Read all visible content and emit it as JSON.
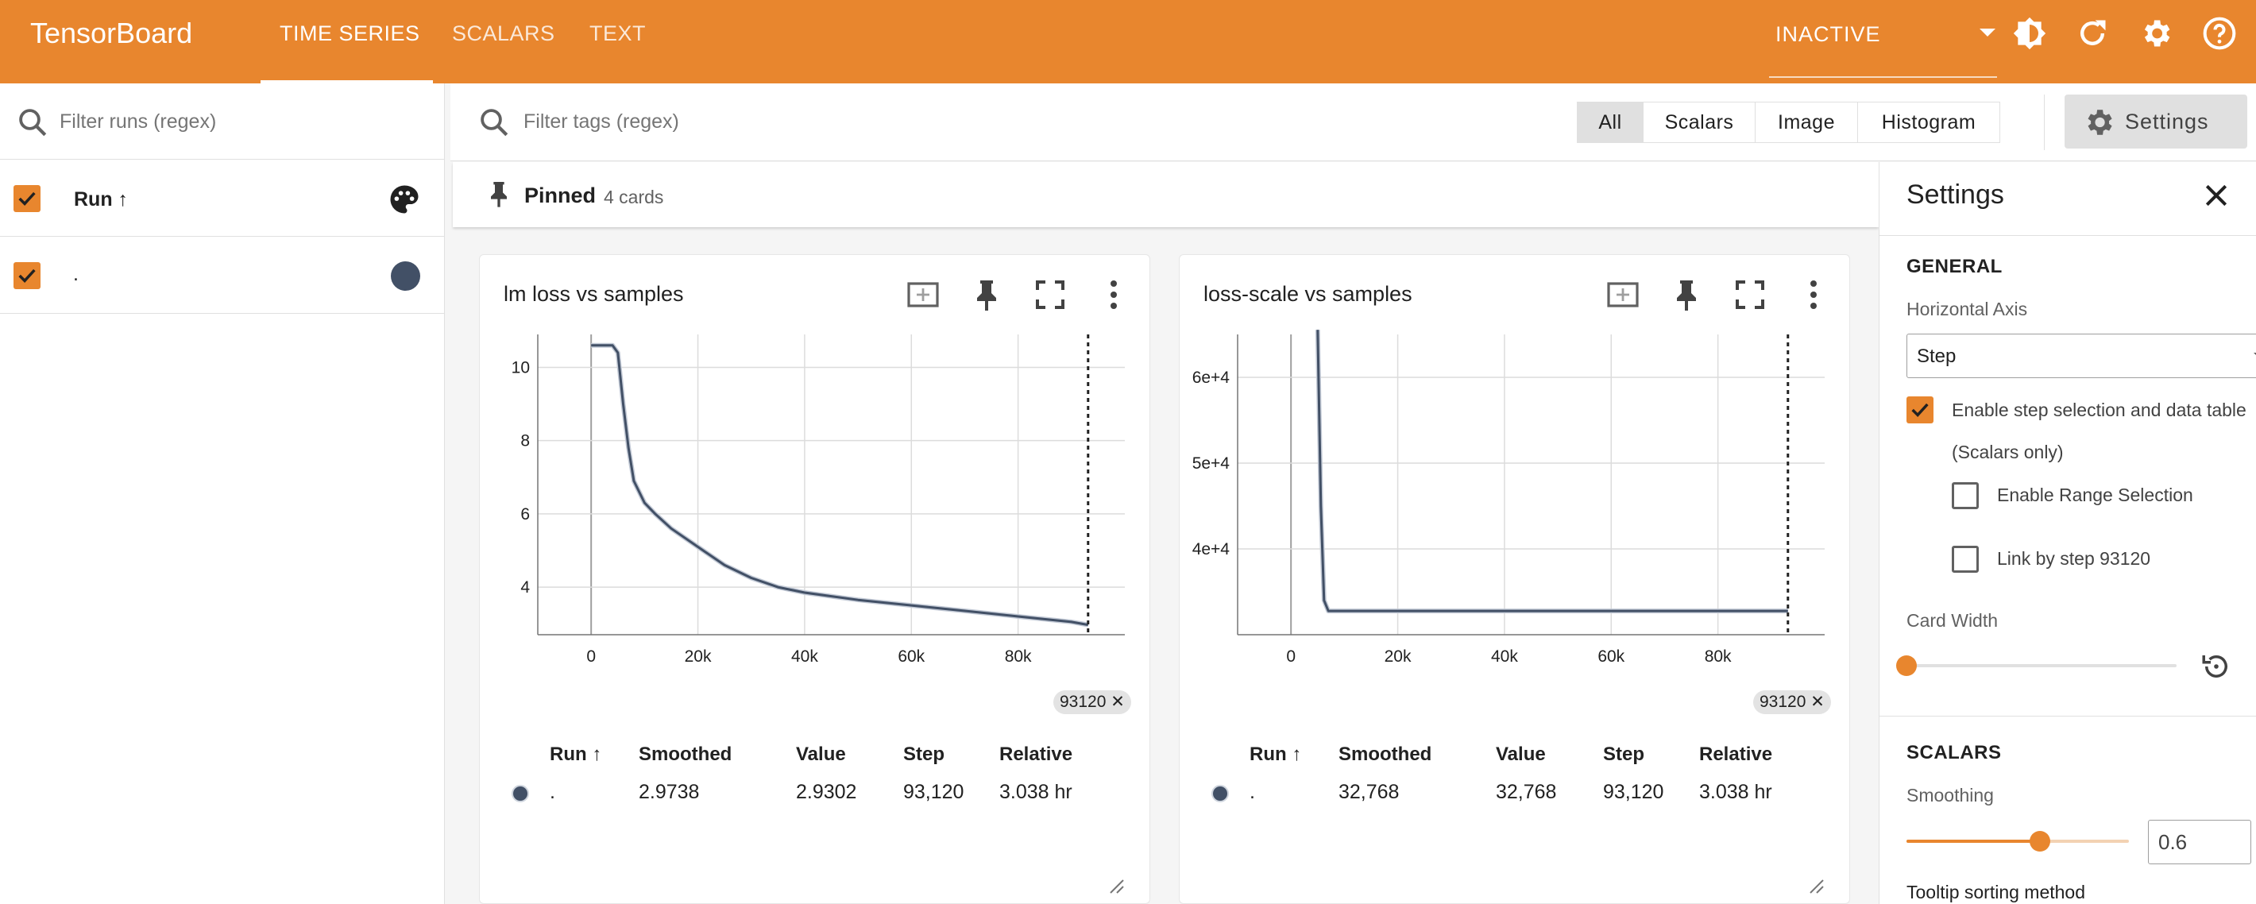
{
  "topbar": {
    "brand": "TensorBoard",
    "tabs": [
      {
        "label": "TIME SERIES",
        "active": true
      },
      {
        "label": "SCALARS",
        "active": false
      },
      {
        "label": "TEXT",
        "active": false
      }
    ],
    "run_status": "INACTIVE",
    "icons": [
      "theme-toggle-icon",
      "refresh-icon",
      "gear-icon",
      "help-icon"
    ],
    "accent_color": "#e8862e"
  },
  "sidebar": {
    "filter_placeholder": "Filter runs (regex)",
    "header_label": "Run ↑",
    "runs": [
      {
        "name": ".",
        "checked": true,
        "color": "#425066"
      }
    ]
  },
  "main": {
    "filter_placeholder": "Filter tags (regex)",
    "type_filters": [
      {
        "label": "All",
        "active": true
      },
      {
        "label": "Scalars",
        "active": false
      },
      {
        "label": "Image",
        "active": false
      },
      {
        "label": "Histogram",
        "active": false
      }
    ],
    "settings_button": "Settings",
    "pinned": {
      "label": "Pinned",
      "count_text": "4 cards"
    }
  },
  "cards": [
    {
      "title": "lm loss vs samples",
      "step_chip": "93120 ✕",
      "table": {
        "headers": [
          "Run ↑",
          "Smoothed",
          "Value",
          "Step",
          "Relative"
        ],
        "row": [
          ".",
          "2.9738",
          "2.9302",
          "93,120",
          "3.038 hr"
        ]
      },
      "chart_data": {
        "type": "line",
        "x_ticks": [
          "0",
          "20k",
          "40k",
          "60k",
          "80k"
        ],
        "y_ticks": [
          "4",
          "6",
          "8",
          "10"
        ],
        "xlim": [
          -10000,
          100000
        ],
        "ylim": [
          2.7,
          10.9
        ],
        "selected_step": 93120,
        "series": [
          {
            "name": ".",
            "x": [
              0,
              4000,
              5000,
              6000,
              7000,
              8000,
              10000,
              12000,
              15000,
              20000,
              25000,
              30000,
              35000,
              40000,
              50000,
              60000,
              70000,
              80000,
              90000,
              93120
            ],
            "y": [
              10.6,
              10.6,
              10.4,
              9.0,
              7.8,
              6.9,
              6.3,
              6.0,
              5.6,
              5.1,
              4.6,
              4.25,
              4.0,
              3.85,
              3.65,
              3.5,
              3.35,
              3.2,
              3.05,
              2.97
            ]
          }
        ]
      }
    },
    {
      "title": "loss-scale vs samples",
      "step_chip": "93120 ✕",
      "table": {
        "headers": [
          "Run ↑",
          "Smoothed",
          "Value",
          "Step",
          "Relative"
        ],
        "row": [
          ".",
          "32,768",
          "32,768",
          "93,120",
          "3.038 hr"
        ]
      },
      "chart_data": {
        "type": "line",
        "x_ticks": [
          "0",
          "20k",
          "40k",
          "60k",
          "80k"
        ],
        "y_ticks": [
          "4e+4",
          "5e+4",
          "6e+4"
        ],
        "xlim": [
          -10000,
          100000
        ],
        "ylim": [
          30000,
          65000
        ],
        "selected_step": 93120,
        "series": [
          {
            "name": ".",
            "x": [
              5000,
              5600,
              6200,
              7000,
              10000,
              93120
            ],
            "y": [
              65536,
              45000,
              34000,
              32768,
              32768,
              32768
            ]
          }
        ]
      }
    }
  ],
  "settings_panel": {
    "title": "Settings",
    "general": {
      "heading": "GENERAL",
      "horizontal_axis_label": "Horizontal Axis",
      "horizontal_axis_value": "Step",
      "step_selection_label": "Enable step selection and data table",
      "step_selection_note": "(Scalars only)",
      "range_selection_label": "Enable Range Selection",
      "link_by_step_label": "Link by step 93120",
      "card_width_label": "Card Width",
      "card_width_fraction": 0
    },
    "scalars": {
      "heading": "SCALARS",
      "smoothing_label": "Smoothing",
      "smoothing_value": "0.6",
      "tooltip_sort_label": "Tooltip sorting method"
    }
  }
}
